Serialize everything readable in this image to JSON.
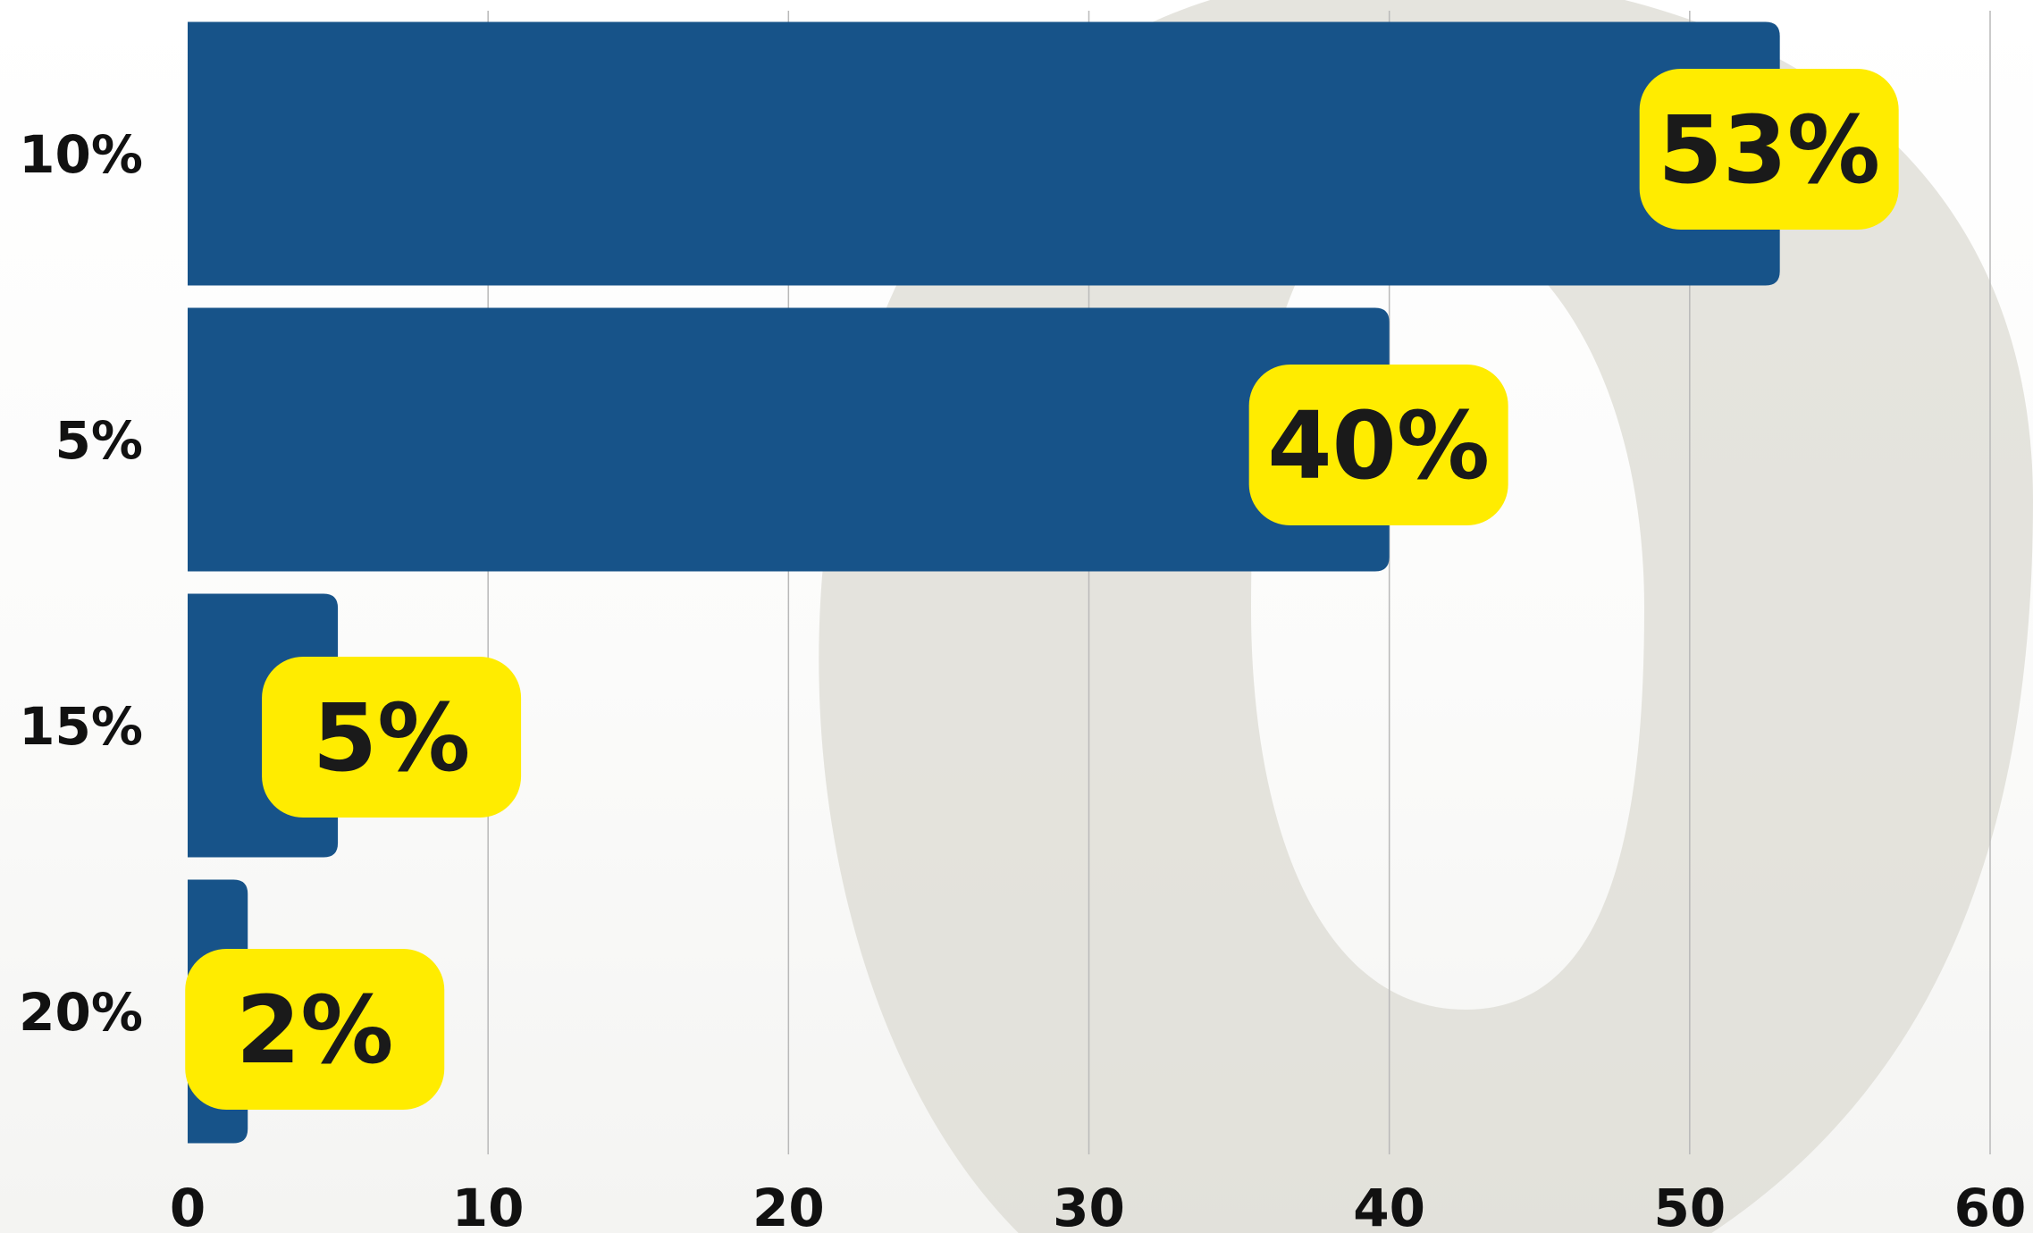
{
  "colors": {
    "bar": "#175389",
    "label_badge": "#ffec00",
    "label_text": "#1a1a1a",
    "axis_text": "#111111",
    "grid": "#b9b9b9",
    "watermark": "#dcdbd3"
  },
  "chart_data": {
    "type": "bar",
    "orientation": "horizontal",
    "categories": [
      "10%",
      "5%",
      "15%",
      "20%"
    ],
    "values": [
      53,
      40,
      5,
      2
    ],
    "data_labels": [
      "53%",
      "40%",
      "5%",
      "2%"
    ],
    "xlim": [
      0,
      60
    ],
    "xticks": [
      0,
      10,
      20,
      30,
      40,
      50,
      60
    ],
    "xtick_labels": [
      "0",
      "10",
      "20",
      "30",
      "40",
      "50",
      "60"
    ],
    "grid": "vertical",
    "legend": "none"
  }
}
